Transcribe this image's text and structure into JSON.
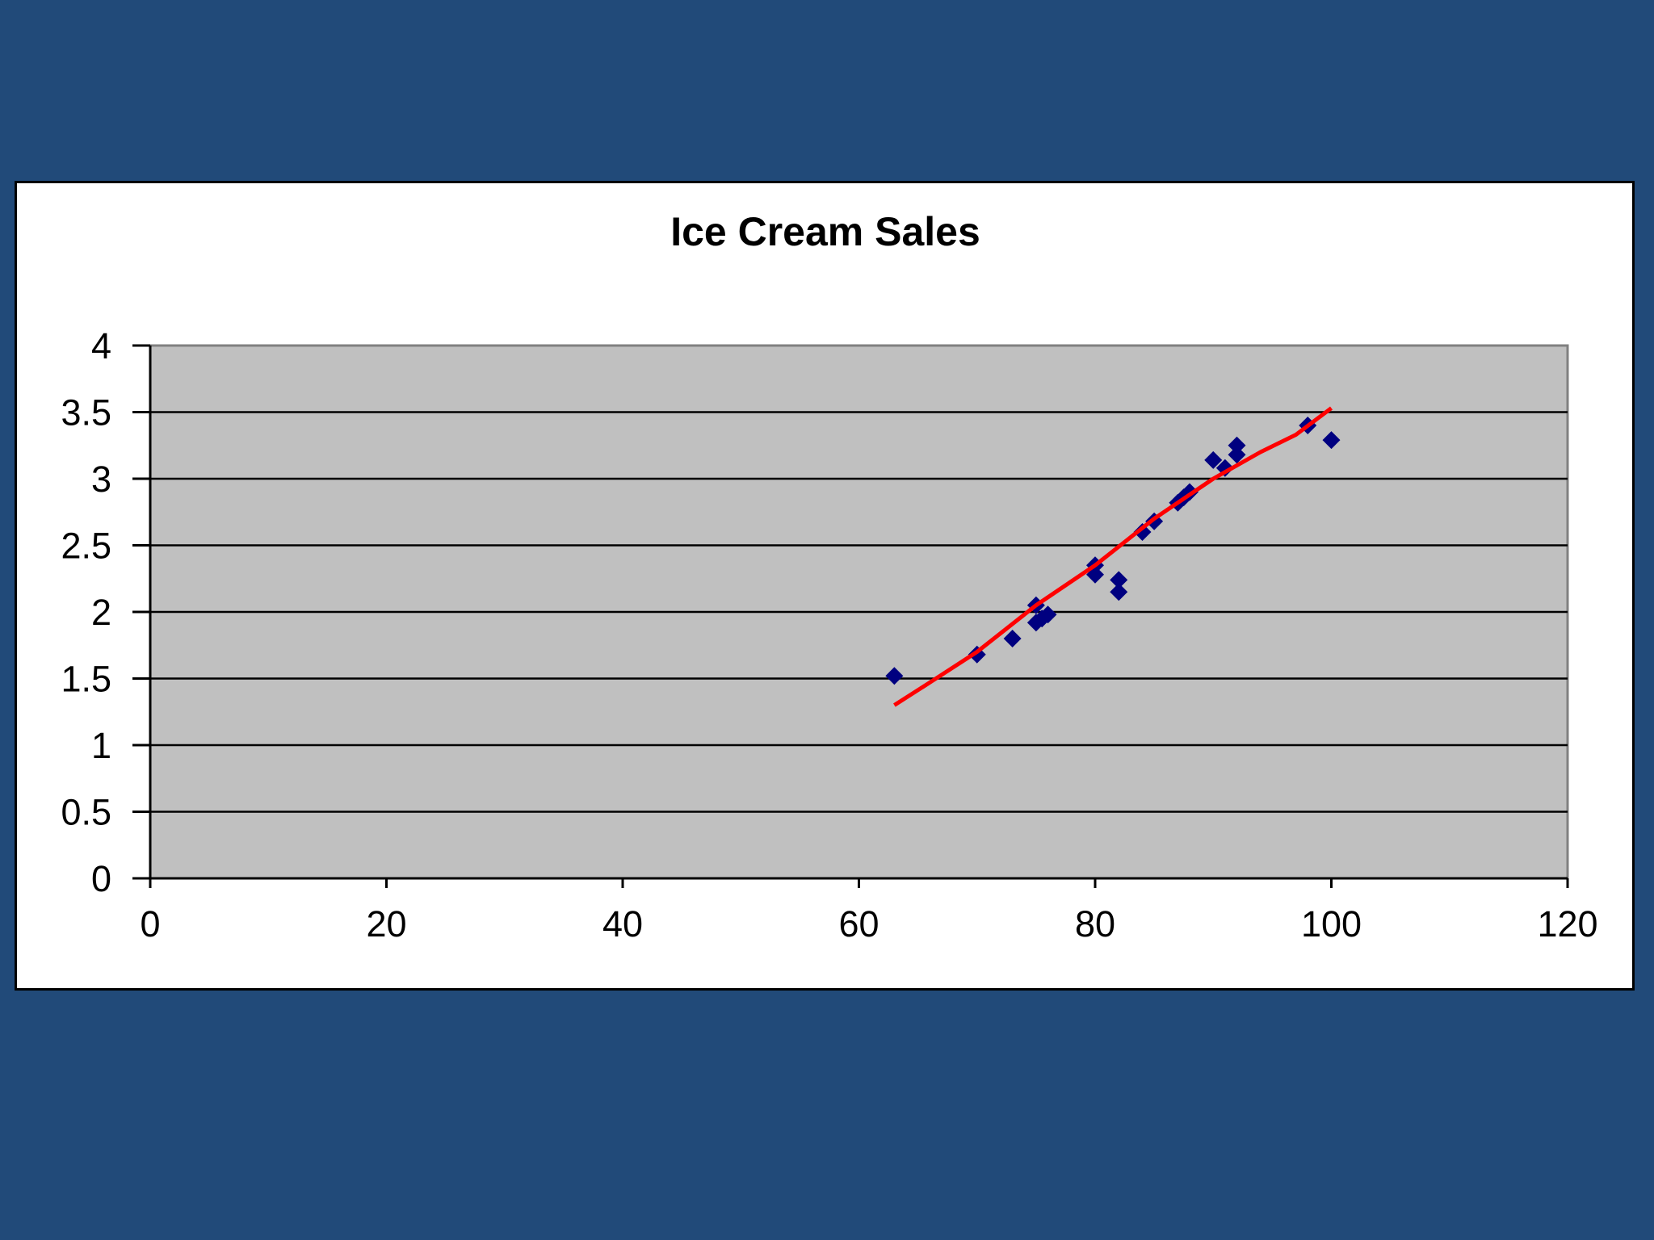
{
  "colors": {
    "slide_background": "#214a79",
    "panel_background": "#ffffff",
    "plot_background": "#c0c0c0",
    "gridline": "#000000",
    "marker": "#000080",
    "trendline": "#ff0000"
  },
  "chart_data": {
    "type": "scatter",
    "title": "Ice Cream Sales",
    "xlabel": "",
    "ylabel": "",
    "xlim": [
      0,
      120
    ],
    "ylim": [
      0,
      4
    ],
    "x_ticks": [
      0,
      20,
      40,
      60,
      80,
      100,
      120
    ],
    "y_ticks": [
      0,
      0.5,
      1,
      1.5,
      2,
      2.5,
      3,
      3.5,
      4
    ],
    "x_tick_labels": [
      "0",
      "20",
      "40",
      "60",
      "80",
      "100",
      "120"
    ],
    "y_tick_labels": [
      "0",
      "0.5",
      "1",
      "1.5",
      "2",
      "2.5",
      "3",
      "3.5",
      "4"
    ],
    "grid": "horizontal major gridlines",
    "legend": "none",
    "marker": "diamond",
    "series": [
      {
        "x": [
          63,
          70,
          73,
          75,
          75,
          75.5,
          76,
          80,
          80,
          82,
          82,
          84,
          85,
          87,
          87.5,
          88,
          90,
          91,
          92,
          92,
          98,
          100
        ],
        "y": [
          1.52,
          1.68,
          1.8,
          2.05,
          1.92,
          1.95,
          1.98,
          2.35,
          2.28,
          2.24,
          2.15,
          2.6,
          2.68,
          2.82,
          2.86,
          2.9,
          3.14,
          3.08,
          3.25,
          3.18,
          3.4,
          3.29
        ]
      }
    ],
    "trendline": {
      "x": [
        63,
        66,
        70,
        75,
        80,
        85,
        90,
        94,
        97,
        100
      ],
      "y": [
        1.3,
        1.47,
        1.7,
        2.05,
        2.35,
        2.7,
        3.0,
        3.2,
        3.33,
        3.53
      ]
    }
  }
}
